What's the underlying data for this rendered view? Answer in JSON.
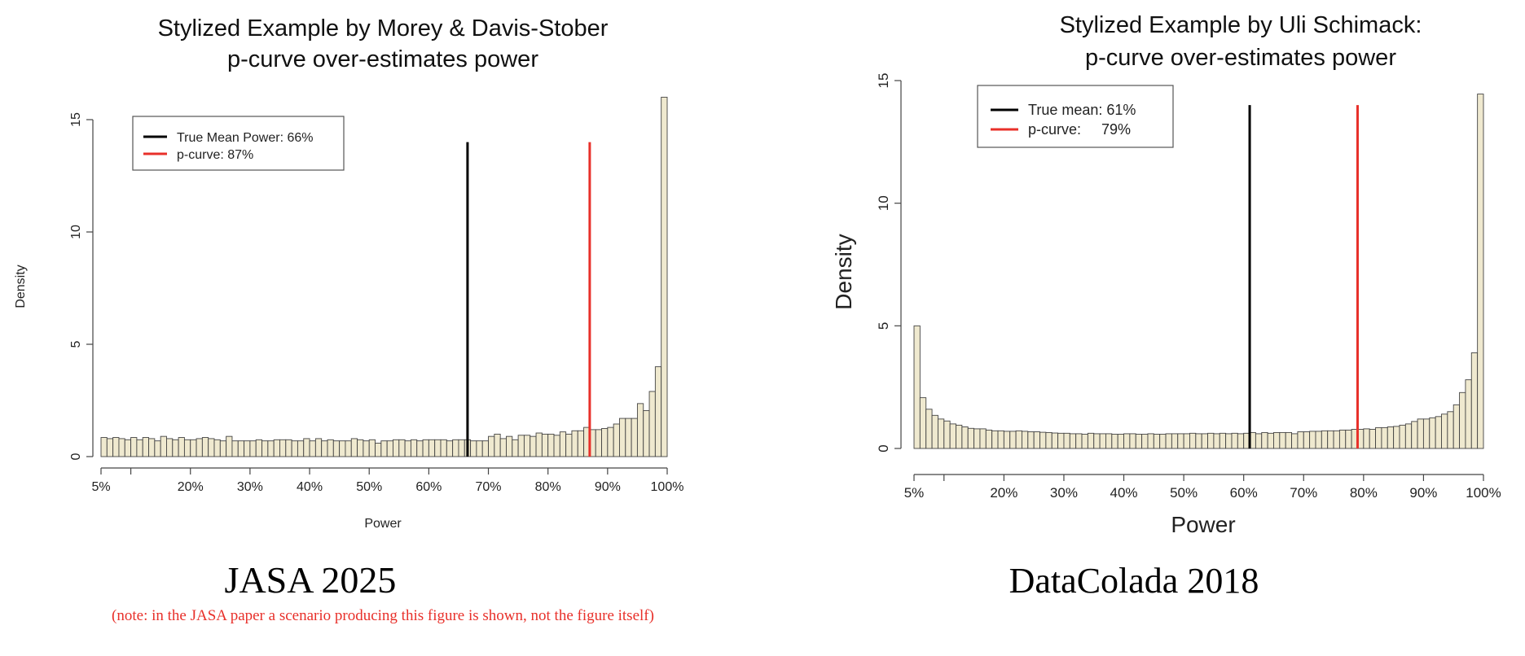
{
  "chart_data": [
    {
      "type": "bar",
      "title": [
        "Stylized Example by Morey & Davis-Stober",
        "p-curve over-estimates power"
      ],
      "xlabel": "Power",
      "ylabel": "Density",
      "xlim": [
        5,
        100
      ],
      "ylim": [
        0,
        15
      ],
      "x_tick_labels": [
        "5%",
        "20%",
        "30%",
        "40%",
        "50%",
        "60%",
        "70%",
        "80%",
        "90%",
        "100%"
      ],
      "x_ticks": [
        5,
        10,
        20,
        30,
        40,
        50,
        60,
        70,
        80,
        90,
        100
      ],
      "x_tick_values": [
        5,
        20,
        30,
        40,
        50,
        60,
        70,
        80,
        90,
        100
      ],
      "y_ticks": [
        0,
        5,
        10,
        15
      ],
      "y_tick_labels": [
        "0",
        "5",
        "10",
        "15"
      ],
      "bin_start": 5,
      "bin_width": 1,
      "values": [
        0.85,
        0.8,
        0.85,
        0.8,
        0.75,
        0.85,
        0.75,
        0.85,
        0.8,
        0.7,
        0.9,
        0.8,
        0.75,
        0.85,
        0.75,
        0.75,
        0.8,
        0.85,
        0.8,
        0.75,
        0.7,
        0.9,
        0.7,
        0.7,
        0.7,
        0.7,
        0.75,
        0.7,
        0.7,
        0.75,
        0.75,
        0.75,
        0.7,
        0.7,
        0.8,
        0.7,
        0.8,
        0.7,
        0.75,
        0.7,
        0.7,
        0.7,
        0.8,
        0.75,
        0.7,
        0.75,
        0.6,
        0.7,
        0.7,
        0.75,
        0.75,
        0.7,
        0.75,
        0.7,
        0.75,
        0.75,
        0.75,
        0.75,
        0.7,
        0.75,
        0.75,
        0.75,
        0.7,
        0.7,
        0.7,
        0.9,
        1.0,
        0.8,
        0.9,
        0.75,
        0.95,
        0.95,
        0.9,
        1.05,
        1.0,
        1.0,
        0.95,
        1.1,
        1.0,
        1.15,
        1.15,
        1.3,
        1.2,
        1.2,
        1.25,
        1.3,
        1.45,
        1.7,
        1.7,
        1.7,
        2.36,
        2.05,
        2.9,
        4.0,
        16.0
      ],
      "vlines": [
        {
          "label": "True Mean Power: 66%",
          "x": 66.5,
          "top": 14,
          "color": "#000000"
        },
        {
          "label": "p-curve: 87%",
          "x": 87,
          "top": 14,
          "color": "#e8302a"
        }
      ],
      "legend_position": "top-left",
      "bar_fill": "#efe9cf",
      "caption": "JASA 2025",
      "note": "(note: in the JASA paper a scenario producing this figure is shown, not the figure itself)"
    },
    {
      "type": "bar",
      "title": [
        "Stylized Example by Uli Schimack:",
        "p-curve over-estimates power"
      ],
      "xlabel": "Power",
      "ylabel": "Density",
      "xlim": [
        5,
        100
      ],
      "ylim": [
        0,
        15
      ],
      "x_tick_labels": [
        "5%",
        "20%",
        "30%",
        "40%",
        "50%",
        "60%",
        "70%",
        "80%",
        "90%",
        "100%"
      ],
      "x_ticks": [
        5,
        10,
        20,
        30,
        40,
        50,
        60,
        70,
        80,
        90,
        100
      ],
      "x_tick_values": [
        5,
        20,
        30,
        40,
        50,
        60,
        70,
        80,
        90,
        100
      ],
      "y_ticks": [
        0,
        5,
        10,
        15
      ],
      "y_tick_labels": [
        "0",
        "5",
        "10",
        "15"
      ],
      "bin_start": 5,
      "bin_width": 1,
      "values": [
        5.0,
        2.07,
        1.6,
        1.35,
        1.2,
        1.12,
        1.0,
        0.95,
        0.88,
        0.82,
        0.8,
        0.8,
        0.75,
        0.72,
        0.72,
        0.7,
        0.7,
        0.72,
        0.7,
        0.68,
        0.68,
        0.66,
        0.65,
        0.63,
        0.62,
        0.62,
        0.6,
        0.6,
        0.58,
        0.62,
        0.6,
        0.6,
        0.6,
        0.58,
        0.58,
        0.6,
        0.6,
        0.58,
        0.58,
        0.6,
        0.58,
        0.58,
        0.6,
        0.6,
        0.6,
        0.6,
        0.62,
        0.6,
        0.6,
        0.62,
        0.6,
        0.62,
        0.6,
        0.62,
        0.6,
        0.62,
        0.65,
        0.6,
        0.65,
        0.62,
        0.65,
        0.65,
        0.65,
        0.6,
        0.68,
        0.68,
        0.7,
        0.7,
        0.72,
        0.72,
        0.72,
        0.75,
        0.75,
        0.78,
        0.78,
        0.8,
        0.78,
        0.85,
        0.85,
        0.88,
        0.9,
        0.95,
        1.0,
        1.1,
        1.2,
        1.2,
        1.25,
        1.3,
        1.4,
        1.5,
        1.78,
        2.28,
        2.8,
        3.9,
        14.45
      ],
      "vlines": [
        {
          "label": "True mean: 61%",
          "x": 61,
          "top": 14,
          "color": "#000000"
        },
        {
          "label": "p-curve:     79%",
          "x": 79,
          "top": 14,
          "color": "#e8302a"
        }
      ],
      "legend_position": "top-left",
      "bar_fill": "#efe9cf",
      "caption": "DataColada 2018"
    }
  ]
}
